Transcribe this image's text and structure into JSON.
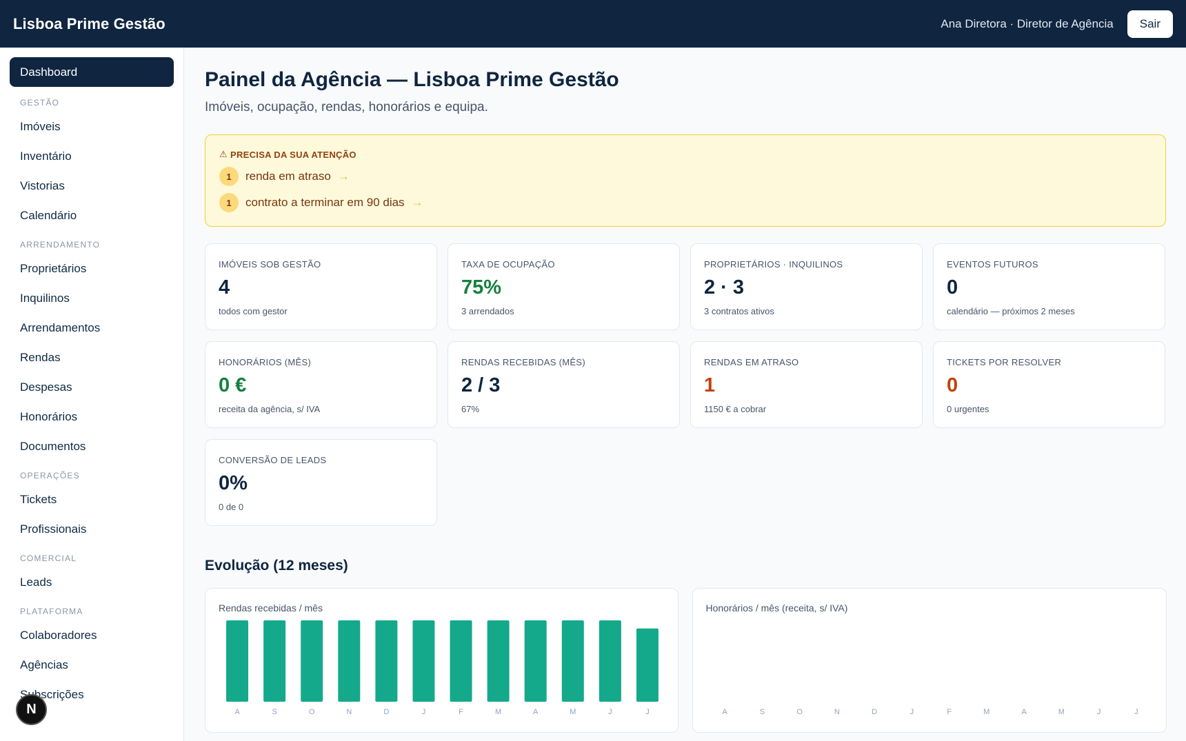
{
  "header": {
    "brand": "Lisboa Prime Gestão",
    "user": "Ana Diretora · Diretor de Agência",
    "logout_label": "Sair"
  },
  "sidebar": {
    "active": "Dashboard",
    "sections": [
      {
        "title": "GESTÃO",
        "items": [
          "Imóveis",
          "Inventário",
          "Vistorias",
          "Calendário"
        ]
      },
      {
        "title": "ARRENDAMENTO",
        "items": [
          "Proprietários",
          "Inquilinos",
          "Arrendamentos",
          "Rendas",
          "Despesas",
          "Honorários",
          "Documentos"
        ]
      },
      {
        "title": "OPERAÇÕES",
        "items": [
          "Tickets",
          "Profissionais"
        ]
      },
      {
        "title": "COMERCIAL",
        "items": [
          "Leads"
        ]
      },
      {
        "title": "PLATAFORMA",
        "items": [
          "Colaboradores",
          "Agências",
          "Subscrições"
        ]
      }
    ]
  },
  "fab_label": "N",
  "main": {
    "title": "Painel da Agência — Lisboa Prime Gestão",
    "subtitle": "Imóveis, ocupação, rendas, honorários e equipa."
  },
  "alert": {
    "title": "PRECISA DA SUA ATENÇÃO",
    "items": [
      {
        "count": "1",
        "text": "renda em atraso",
        "arrow": "→"
      },
      {
        "count": "1",
        "text": "contrato a terminar em 90 dias",
        "arrow": "→"
      }
    ]
  },
  "cards": [
    {
      "label": "IMÓVEIS SOB GESTÃO",
      "value": "4",
      "sub": "todos com gestor",
      "tone": "default"
    },
    {
      "label": "TAXA DE OCUPAÇÃO",
      "value": "75%",
      "sub": "3 arrendados",
      "tone": "green"
    },
    {
      "label": "PROPRIETÁRIOS · INQUILINOS",
      "value": "2 · 3",
      "sub": "3 contratos ativos",
      "tone": "default"
    },
    {
      "label": "EVENTOS FUTUROS",
      "value": "0",
      "sub": "calendário — próximos 2 meses",
      "tone": "default"
    },
    {
      "label": "HONORÁRIOS (MÊS)",
      "value": "0 €",
      "sub": "receita da agência, s/ IVA",
      "tone": "green"
    },
    {
      "label": "RENDAS RECEBIDAS (MÊS)",
      "value": "2 / 3",
      "sub": "67%",
      "tone": "default"
    },
    {
      "label": "RENDAS EM ATRASO",
      "value": "1",
      "sub": "1150 € a cobrar",
      "tone": "orange"
    },
    {
      "label": "TICKETS POR RESOLVER",
      "value": "0",
      "sub": "0 urgentes",
      "tone": "orange"
    },
    {
      "label": "CONVERSÃO DE LEADS",
      "value": "0%",
      "sub": "0 de 0",
      "tone": "default"
    }
  ],
  "evolution_title": "Evolução (12 meses)",
  "chart_data": [
    {
      "type": "bar",
      "title": "Rendas recebidas / mês",
      "categories": [
        "A",
        "S",
        "O",
        "N",
        "D",
        "J",
        "F",
        "M",
        "A",
        "M",
        "J",
        "J"
      ],
      "values": [
        3,
        3,
        3,
        3,
        3,
        3,
        3,
        3,
        3,
        3,
        3,
        2.7
      ],
      "color": "#14a98b"
    },
    {
      "type": "bar",
      "title": "Honorários / mês (receita, s/ IVA)",
      "categories": [
        "A",
        "S",
        "O",
        "N",
        "D",
        "J",
        "F",
        "M",
        "A",
        "M",
        "J",
        "J"
      ],
      "values": [
        0,
        0,
        0,
        0,
        0,
        0,
        0,
        0,
        0,
        0,
        0,
        0
      ],
      "color": "#14a98b"
    }
  ],
  "colors": {
    "navy": "#0f2540",
    "green": "#15803d",
    "orange": "#c2410c",
    "alert_bg": "#fef9db",
    "bar": "#14a98b"
  }
}
